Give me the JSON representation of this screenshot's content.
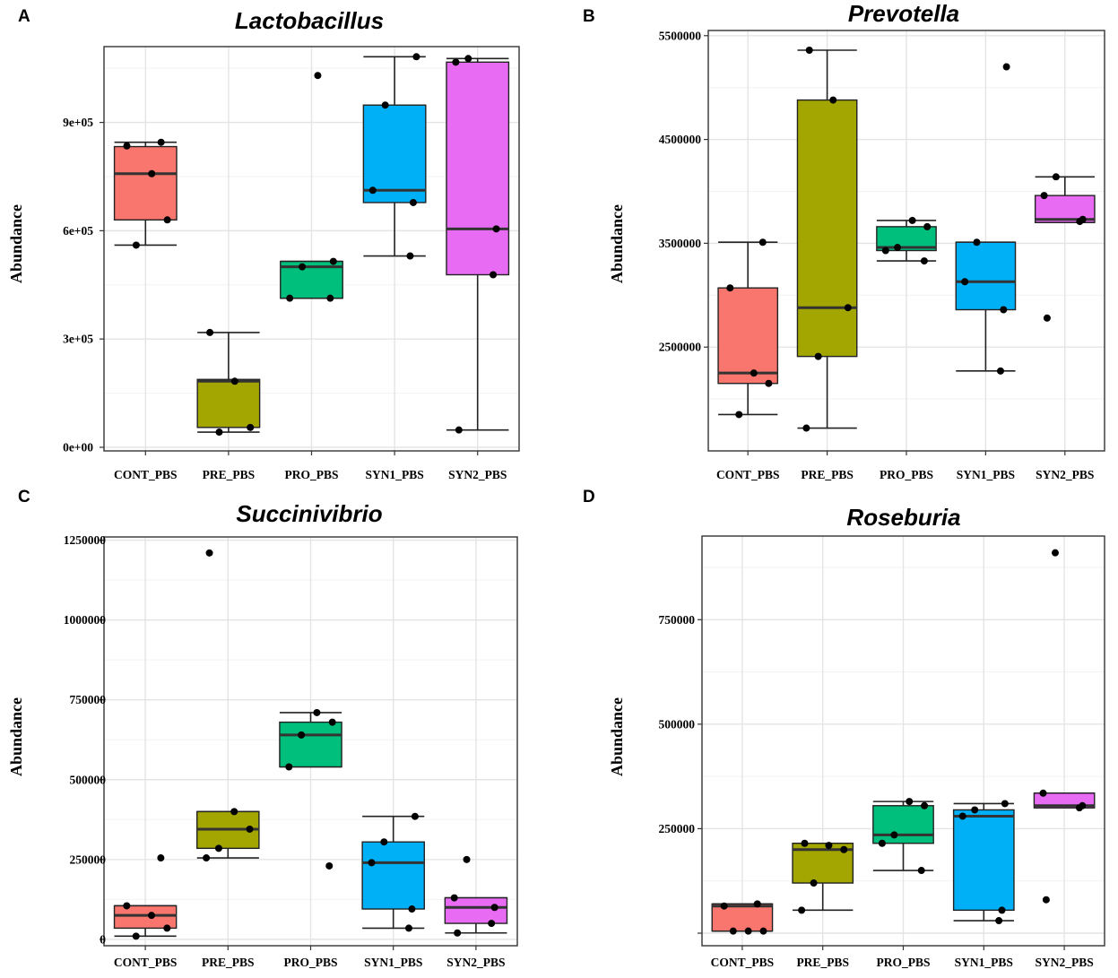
{
  "figure": {
    "colors": [
      "#F8766D",
      "#A3A500",
      "#00BF7D",
      "#00B0F6",
      "#E76BF3"
    ]
  },
  "chart_data": [
    {
      "id": "A",
      "type": "box",
      "panel_label": "A",
      "title": "Lactobacillus",
      "xlabel": "",
      "ylabel": "Abundance",
      "ylim": [
        -10000,
        1110000
      ],
      "yticks": [
        0,
        300000,
        600000,
        900000
      ],
      "ytick_labels": [
        "0e+00",
        "3e+05",
        "6e+05",
        "9e+05"
      ],
      "categories": [
        "CONT_PBS",
        "PRE_PBS",
        "PRO_PBS",
        "SYN1_PBS",
        "SYN2_PBS"
      ],
      "boxes": [
        {
          "category": "CONT_PBS",
          "whisker_low": 560000,
          "q1": 630000,
          "median": 758000,
          "q3": 833000,
          "whisker_high": 845000
        },
        {
          "category": "PRE_PBS",
          "whisker_low": 42000,
          "q1": 55000,
          "median": 183000,
          "q3": 188000,
          "whisker_high": 318000
        },
        {
          "category": "PRO_PBS",
          "whisker_low": 413000,
          "q1": 413000,
          "median": 500000,
          "q3": 515000,
          "whisker_high": 515000
        },
        {
          "category": "SYN1_PBS",
          "whisker_low": 530000,
          "q1": 678000,
          "median": 712000,
          "q3": 948000,
          "whisker_high": 1082000
        },
        {
          "category": "SYN2_PBS",
          "whisker_low": 48000,
          "q1": 478000,
          "median": 605000,
          "q3": 1067000,
          "whisker_high": 1077000
        }
      ],
      "points": [
        {
          "category": "CONT_PBS",
          "values": [
            845000,
            835000,
            758000,
            630000,
            560000
          ]
        },
        {
          "category": "PRE_PBS",
          "values": [
            318000,
            183000,
            55000,
            42000
          ]
        },
        {
          "category": "PRO_PBS",
          "values": [
            1030000,
            515000,
            500000,
            413000,
            413000
          ]
        },
        {
          "category": "SYN1_PBS",
          "values": [
            1082000,
            948000,
            712000,
            678000,
            530000
          ]
        },
        {
          "category": "SYN2_PBS",
          "values": [
            1077000,
            1067000,
            605000,
            478000,
            48000
          ]
        }
      ]
    },
    {
      "id": "B",
      "type": "box",
      "panel_label": "B",
      "title": "Prevotella",
      "xlabel": "",
      "ylabel": "Abundance",
      "ylim": [
        1500000,
        5550000
      ],
      "yticks": [
        2500000,
        3500000,
        4500000,
        5500000
      ],
      "ytick_labels": [
        "2500000",
        "3500000",
        "4500000",
        "5500000"
      ],
      "categories": [
        "CONT_PBS",
        "PRE_PBS",
        "PRO_PBS",
        "SYN1_PBS",
        "SYN2_PBS"
      ],
      "boxes": [
        {
          "category": "CONT_PBS",
          "whisker_low": 1850000,
          "q1": 2150000,
          "median": 2250000,
          "q3": 3070000,
          "whisker_high": 3510000
        },
        {
          "category": "PRE_PBS",
          "whisker_low": 1720000,
          "q1": 2410000,
          "median": 2880000,
          "q3": 4880000,
          "whisker_high": 5360000
        },
        {
          "category": "PRO_PBS",
          "whisker_low": 3330000,
          "q1": 3430000,
          "median": 3460000,
          "q3": 3660000,
          "whisker_high": 3720000
        },
        {
          "category": "SYN1_PBS",
          "whisker_low": 2270000,
          "q1": 2860000,
          "median": 3130000,
          "q3": 3510000,
          "whisker_high": 3510000
        },
        {
          "category": "SYN2_PBS",
          "whisker_low": 3700000,
          "q1": 3700000,
          "median": 3730000,
          "q3": 3960000,
          "whisker_high": 4140000
        }
      ],
      "points": [
        {
          "category": "CONT_PBS",
          "values": [
            3510000,
            3070000,
            2250000,
            2150000,
            1850000
          ]
        },
        {
          "category": "PRE_PBS",
          "values": [
            5360000,
            4880000,
            2880000,
            2410000,
            1720000
          ]
        },
        {
          "category": "PRO_PBS",
          "values": [
            3720000,
            3660000,
            3460000,
            3430000,
            3330000
          ]
        },
        {
          "category": "SYN1_PBS",
          "values": [
            5200000,
            3510000,
            3130000,
            2860000,
            2270000
          ]
        },
        {
          "category": "SYN2_PBS",
          "values": [
            4140000,
            3960000,
            3730000,
            3710000,
            2780000
          ]
        }
      ]
    },
    {
      "id": "C",
      "type": "box",
      "panel_label": "C",
      "title": "Succinivibrio",
      "xlabel": "",
      "ylabel": "Abundance",
      "ylim": [
        -20000,
        1260000
      ],
      "yticks": [
        0,
        250000,
        500000,
        750000,
        1000000,
        1250000
      ],
      "ytick_labels": [
        "0",
        "250000",
        "500000",
        "750000",
        "1000000",
        "1250000"
      ],
      "categories": [
        "CONT_PBS",
        "PRE_PBS",
        "PRO_PBS",
        "SYN1_PBS",
        "SYN2_PBS"
      ],
      "boxes": [
        {
          "category": "CONT_PBS",
          "whisker_low": 10000,
          "q1": 35000,
          "median": 75000,
          "q3": 105000,
          "whisker_high": 105000
        },
        {
          "category": "PRE_PBS",
          "whisker_low": 255000,
          "q1": 285000,
          "median": 345000,
          "q3": 400000,
          "whisker_high": 400000
        },
        {
          "category": "PRO_PBS",
          "whisker_low": 540000,
          "q1": 540000,
          "median": 640000,
          "q3": 680000,
          "whisker_high": 710000
        },
        {
          "category": "SYN1_PBS",
          "whisker_low": 35000,
          "q1": 95000,
          "median": 240000,
          "q3": 305000,
          "whisker_high": 385000
        },
        {
          "category": "SYN2_PBS",
          "whisker_low": 20000,
          "q1": 50000,
          "median": 100000,
          "q3": 130000,
          "whisker_high": 130000
        }
      ],
      "points": [
        {
          "category": "CONT_PBS",
          "values": [
            255000,
            105000,
            75000,
            35000,
            10000
          ]
        },
        {
          "category": "PRE_PBS",
          "values": [
            1210000,
            400000,
            345000,
            285000,
            255000
          ]
        },
        {
          "category": "PRO_PBS",
          "values": [
            710000,
            680000,
            640000,
            540000,
            230000
          ]
        },
        {
          "category": "SYN1_PBS",
          "values": [
            385000,
            305000,
            240000,
            95000,
            35000
          ]
        },
        {
          "category": "SYN2_PBS",
          "values": [
            250000,
            130000,
            100000,
            50000,
            20000
          ]
        }
      ]
    },
    {
      "id": "D",
      "type": "box",
      "panel_label": "D",
      "title": "Roseburia",
      "xlabel": "",
      "ylabel": "Abundance",
      "ylim": [
        -30000,
        950000
      ],
      "yticks": [
        0,
        250000,
        500000,
        750000
      ],
      "ytick_labels": [
        "",
        "250000",
        "500000",
        "750000"
      ],
      "categories": [
        "CONT_PBS",
        "PRE_PBS",
        "PRO_PBS",
        "SYN1_PBS",
        "SYN2_PBS"
      ],
      "boxes": [
        {
          "category": "CONT_PBS",
          "whisker_low": 5000,
          "q1": 5000,
          "median": 65000,
          "q3": 70000,
          "whisker_high": 70000
        },
        {
          "category": "PRE_PBS",
          "whisker_low": 55000,
          "q1": 120000,
          "median": 200000,
          "q3": 215000,
          "whisker_high": 215000
        },
        {
          "category": "PRO_PBS",
          "whisker_low": 150000,
          "q1": 215000,
          "median": 235000,
          "q3": 305000,
          "whisker_high": 315000
        },
        {
          "category": "SYN1_PBS",
          "whisker_low": 30000,
          "q1": 55000,
          "median": 280000,
          "q3": 295000,
          "whisker_high": 310000
        },
        {
          "category": "SYN2_PBS",
          "whisker_low": 300000,
          "q1": 300000,
          "median": 305000,
          "q3": 335000,
          "whisker_high": 335000
        }
      ],
      "points": [
        {
          "category": "CONT_PBS",
          "values": [
            70000,
            65000,
            5000,
            5000,
            5000
          ]
        },
        {
          "category": "PRE_PBS",
          "values": [
            215000,
            210000,
            200000,
            120000,
            55000
          ]
        },
        {
          "category": "PRO_PBS",
          "values": [
            315000,
            305000,
            235000,
            215000,
            150000
          ]
        },
        {
          "category": "SYN1_PBS",
          "values": [
            310000,
            295000,
            280000,
            55000,
            30000
          ]
        },
        {
          "category": "SYN2_PBS",
          "values": [
            910000,
            335000,
            305000,
            300000,
            80000
          ]
        }
      ]
    }
  ]
}
